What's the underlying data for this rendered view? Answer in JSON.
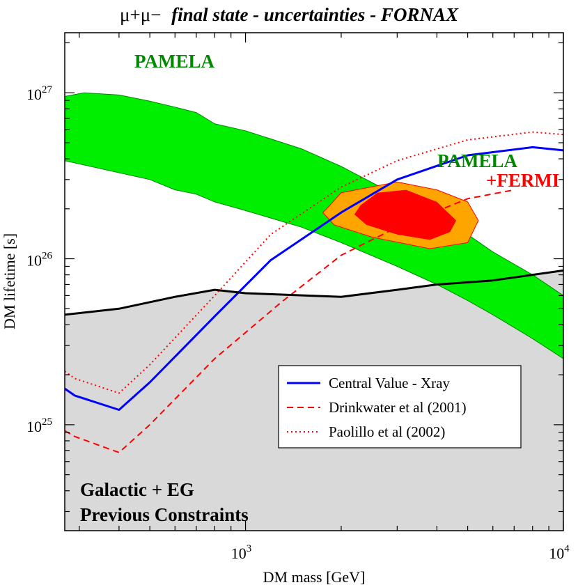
{
  "chart_data": {
    "type": "line",
    "title_prefix": "μ+μ−",
    "title_rest": "final state - uncertainties - FORNAX",
    "xlabel": "DM mass [GeV]",
    "ylabel": "DM lifetime [s]",
    "xscale": "log",
    "yscale": "log",
    "xlim": [
      270,
      10000
    ],
    "ylim": [
      2.3e+24,
      2.3e+27
    ],
    "x_ticks": [
      {
        "value": 1000,
        "base": "10",
        "exp": "3"
      },
      {
        "value": 10000,
        "base": "10",
        "exp": "4"
      }
    ],
    "y_ticks": [
      {
        "value": 1e+25,
        "base": "10",
        "exp": "25"
      },
      {
        "value": 1e+26,
        "base": "10",
        "exp": "26"
      },
      {
        "value": 1e+27,
        "base": "10",
        "exp": "27"
      }
    ],
    "series": [
      {
        "name": "Central Value - Xray",
        "color": "#0000ff",
        "style": "solid",
        "x": [
          270,
          290,
          400,
          500,
          800,
          1200,
          2000,
          3000,
          5000,
          8000,
          10000
        ],
        "y": [
          1.65e+25,
          1.5e+25,
          1.23e+25,
          1.8e+25,
          4.5e+25,
          9.8e+25,
          1.9e+26,
          3e+26,
          4.2e+26,
          4.7e+26,
          4.5e+26
        ]
      },
      {
        "name": "Drinkwater et al (2001)",
        "color": "#ff0000",
        "style": "dashed",
        "x": [
          270,
          290,
          400,
          500,
          800,
          1300,
          2000,
          3000,
          5000,
          7000
        ],
        "y": [
          9.2e+24,
          8.5e+24,
          6.8e+24,
          1e+25,
          2.5e+25,
          5.5e+25,
          1.05e+26,
          1.55e+26,
          2.3e+26,
          2.6e+26
        ]
      },
      {
        "name": "Paolillo et al (2002)",
        "color": "#ff0000",
        "style": "dotted",
        "x": [
          270,
          290,
          400,
          500,
          800,
          1200,
          2000,
          3000,
          5000,
          8000,
          10000
        ],
        "y": [
          2.1e+25,
          1.9e+25,
          1.55e+25,
          2.3e+25,
          6e+25,
          1.4e+26,
          2.7e+26,
          3.9e+26,
          5.2e+26,
          5.8e+26,
          5.6e+26
        ]
      },
      {
        "name": "Galactic + EG constraint",
        "color": "#000000",
        "style": "solid",
        "x": [
          270,
          400,
          600,
          800,
          1000,
          2000,
          3000,
          4000,
          6000,
          8000,
          10000
        ],
        "y": [
          4.6e+25,
          5e+25,
          5.9e+25,
          6.5e+25,
          6.2e+25,
          5.9e+25,
          6.5e+25,
          7e+25,
          7.4e+25,
          8e+25,
          8.5e+25
        ]
      }
    ],
    "pamela_band": {
      "label": "PAMELA",
      "color": "#00ee00",
      "edge": "#008800",
      "upper": {
        "x": [
          270,
          310,
          400,
          500,
          600,
          700,
          800,
          1000,
          1500,
          2000,
          3000,
          4000,
          5000,
          6000,
          8000,
          10000
        ],
        "y": [
          9.5e+26,
          1e+27,
          9.7e+26,
          8.9e+26,
          8.2e+26,
          7.6e+26,
          6.5e+26,
          5.9e+26,
          4.6e+26,
          3.6e+26,
          2.4e+26,
          1.75e+26,
          1.4e+26,
          1.1e+26,
          8e+25,
          6e+25
        ]
      },
      "lower": {
        "x": [
          270,
          400,
          500,
          600,
          700,
          800,
          1000,
          1500,
          2000,
          3000,
          4000,
          5000,
          6000,
          8000,
          10000
        ],
        "y": [
          3.9e+26,
          3.3e+26,
          3e+26,
          2.6e+26,
          2.45e+26,
          2.2e+26,
          1.95e+26,
          1.55e+26,
          1.25e+26,
          9e+25,
          7e+25,
          5.6e+25,
          4.6e+25,
          3.3e+25,
          2.5e+25
        ]
      }
    },
    "fermi_region_outer": {
      "color": "#ffa500",
      "edge": "#ff0000",
      "x": [
        1800,
        2000,
        3000,
        4000,
        5000,
        5400,
        5000,
        3800,
        2500,
        1900,
        1750
      ],
      "y": [
        2e+26,
        2.5e+26,
        2.9e+26,
        2.6e+26,
        2.2e+26,
        1.7e+26,
        1.25e+26,
        1.15e+26,
        1.35e+26,
        1.6e+26,
        1.9e+26
      ]
    },
    "fermi_region_inner": {
      "color": "#ff0000",
      "x": [
        2300,
        2600,
        3200,
        4000,
        4600,
        4400,
        3800,
        3000,
        2400,
        2200
      ],
      "y": [
        2.1e+26,
        2.5e+26,
        2.6e+26,
        2.2e+26,
        1.7e+26,
        1.45e+26,
        1.3e+26,
        1.4e+26,
        1.6e+26,
        1.85e+26
      ]
    },
    "constraint_region": {
      "color": "#d9d9d9"
    },
    "annotations": {
      "pamela_top": "PAMELA",
      "pamela_fermi_1": "PAMELA",
      "pamela_fermi_2": "+FERMI",
      "constraints_1": "Galactic + EG",
      "constraints_2": "Previous Constraints"
    },
    "legend": {
      "position": "lower-right",
      "entries": [
        "Central Value - Xray",
        "Drinkwater et al (2001)",
        "Paolillo et al (2002)"
      ]
    }
  }
}
